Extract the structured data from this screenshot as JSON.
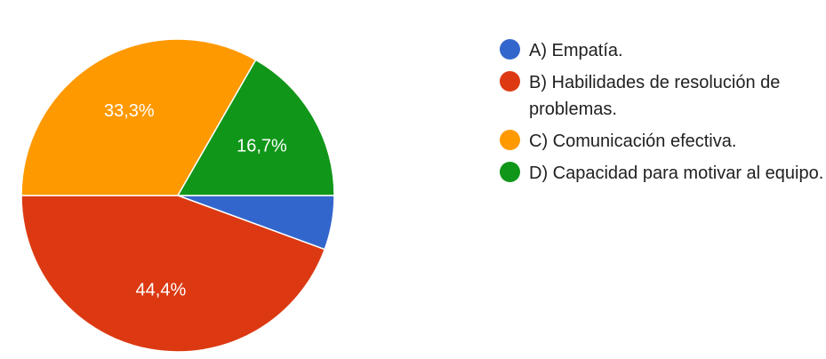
{
  "chart_data": {
    "type": "pie",
    "title": "",
    "series": [
      {
        "label": "A) Empatía.",
        "value": 5.6,
        "color": "#3366cc",
        "data_label": ""
      },
      {
        "label": "B) Habilidades de resolución de problemas.",
        "value": 44.4,
        "color": "#dc3912",
        "data_label": "44,4%"
      },
      {
        "label": "C) Comunicación efectiva.",
        "value": 33.3,
        "color": "#ff9900",
        "data_label": "33,3%"
      },
      {
        "label": "D) Capacidad para motivar al equipo.",
        "value": 16.7,
        "color": "#109618",
        "data_label": "16,7%"
      }
    ],
    "legend_position": "right"
  }
}
